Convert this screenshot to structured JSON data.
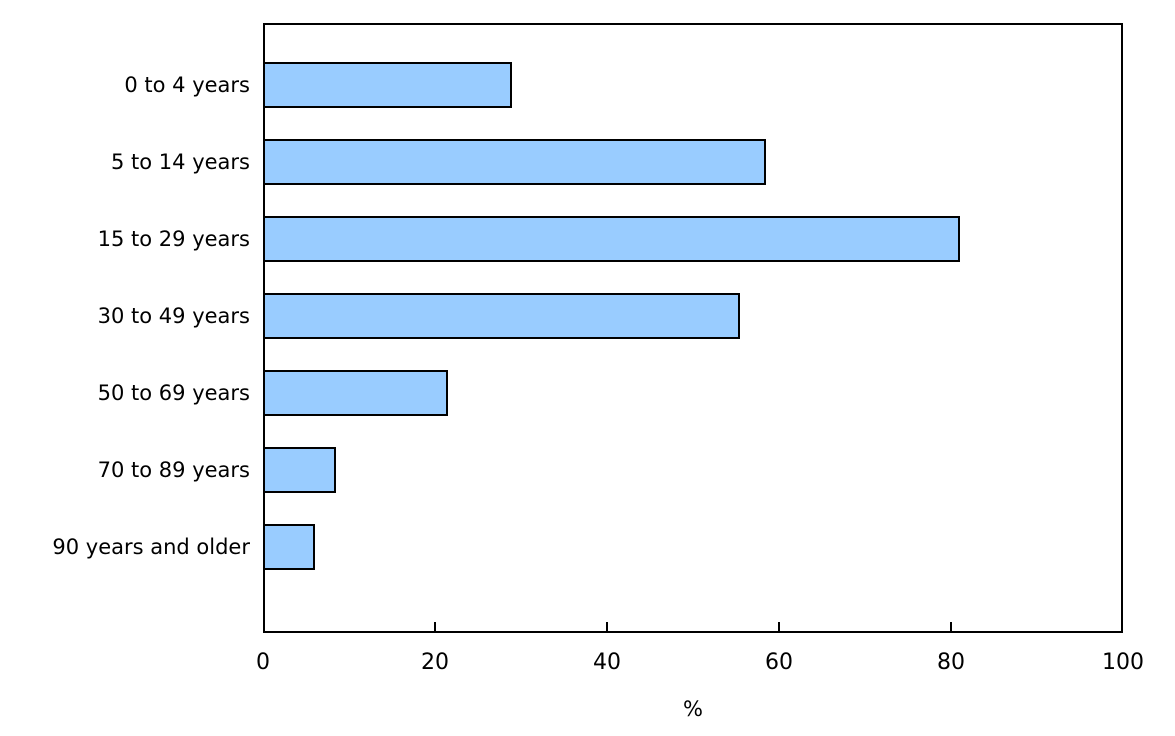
{
  "chart_data": {
    "type": "bar",
    "orientation": "horizontal",
    "title": "",
    "categories": [
      "0 to 4 years",
      "5 to 14 years",
      "15 to 29 years",
      "30 to 49 years",
      "50 to 69 years",
      "70 to 89 years",
      "90 years and older"
    ],
    "values": [
      29,
      58.5,
      81,
      55.5,
      21.5,
      8.5,
      6
    ],
    "xlabel": "%",
    "ylabel": "",
    "x_ticks": [
      0,
      20,
      40,
      60,
      80,
      100
    ],
    "x_tick_labels": [
      "0",
      "20",
      "40",
      "60",
      "80",
      "100"
    ],
    "xlim": [
      0,
      100
    ],
    "grid": false,
    "legend": null,
    "bar_color": "#99CCFF",
    "bar_border_color": "#000000",
    "axis_color": "#000000",
    "background_color": "#ffffff"
  }
}
